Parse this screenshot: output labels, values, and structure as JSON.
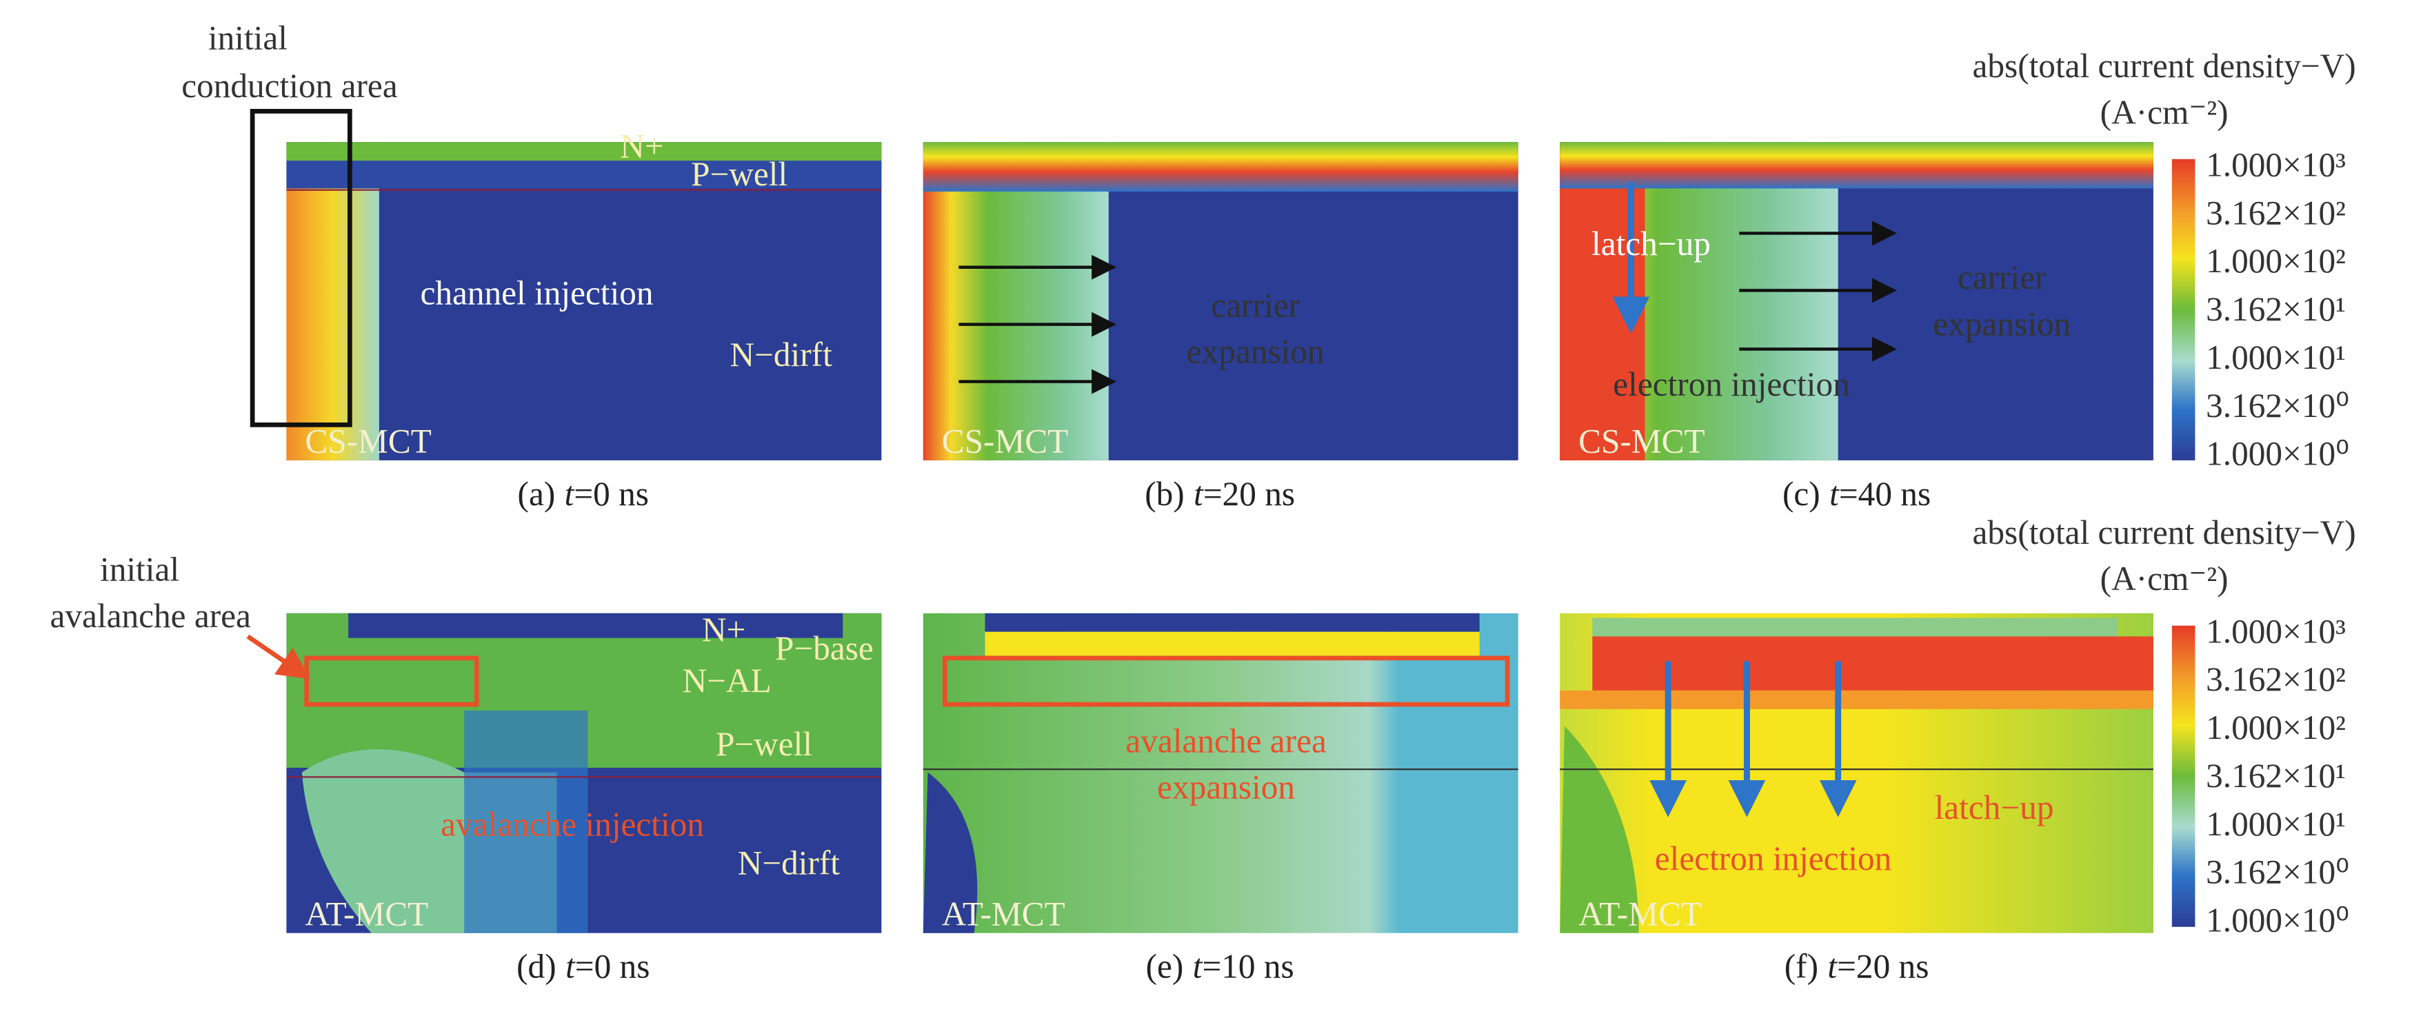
{
  "panels": [
    {
      "caption": {
        "letter": "(a)",
        "var": "t",
        "rest": "=0 ns"
      },
      "device": "CS-MCT",
      "labels": [
        "N+",
        "P−well",
        "channel injection",
        "N−dirft"
      ]
    },
    {
      "caption": {
        "letter": "(b)",
        "var": "t",
        "rest": "=20 ns"
      },
      "device": "CS-MCT",
      "labels": [
        "carrier",
        "expansion"
      ]
    },
    {
      "caption": {
        "letter": "(c)",
        "var": "t",
        "rest": "=40 ns"
      },
      "device": "CS-MCT",
      "labels": [
        "latch−up",
        "electron injection",
        "carrier",
        "expansion"
      ]
    },
    {
      "caption": {
        "letter": "(d)",
        "var": "t",
        "rest": "=0 ns"
      },
      "device": "AT-MCT",
      "labels": [
        "N+",
        "P−base",
        "N−AL",
        "P−well",
        "avalanche injection",
        "N−dirft"
      ]
    },
    {
      "caption": {
        "letter": "(e)",
        "var": "t",
        "rest": "=10 ns"
      },
      "device": "AT-MCT",
      "labels": [
        "avalanche area",
        "expansion"
      ]
    },
    {
      "caption": {
        "letter": "(f)",
        "var": "t",
        "rest": "=20 ns"
      },
      "device": "AT-MCT",
      "labels": [
        "latch−up",
        "electron injection"
      ]
    }
  ],
  "colorbars": [
    {
      "title": "abs(total current density−V)",
      "unit": "(A·cm⁻²)",
      "ticks": [
        "1.000×10³",
        "3.162×10²",
        "1.000×10²",
        "3.162×10¹",
        "1.000×10¹",
        "3.162×10⁰",
        "1.000×10⁰"
      ]
    },
    {
      "title": "abs(total current density−V)",
      "unit": "(A·cm⁻²)",
      "ticks": [
        "1.000×10³",
        "3.162×10²",
        "1.000×10²",
        "3.162×10¹",
        "1.000×10¹",
        "3.162×10⁰",
        "1.000×10⁰"
      ]
    }
  ],
  "callouts": [
    [
      "initial",
      "conduction area"
    ],
    [
      "initial",
      "avalanche area"
    ]
  ]
}
